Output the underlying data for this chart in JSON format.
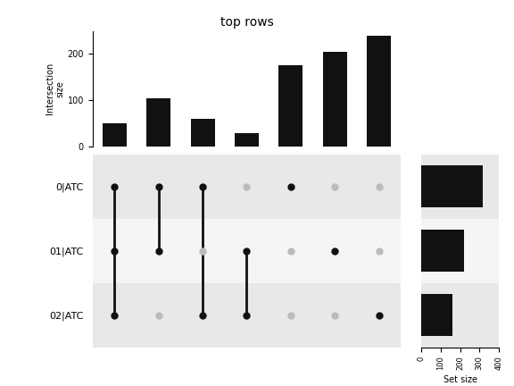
{
  "title": "top rows",
  "intersection_sizes": [
    50,
    105,
    60,
    30,
    175,
    205,
    240
  ],
  "set_labels": [
    "0|ATC",
    "01|ATC",
    "02|ATC"
  ],
  "set_sizes": [
    320,
    220,
    160
  ],
  "n_intersections": 7,
  "n_sets": 3,
  "dot_matrix": [
    [
      1,
      1,
      1,
      0,
      1,
      0,
      0
    ],
    [
      1,
      1,
      0,
      1,
      0,
      1,
      0
    ],
    [
      1,
      0,
      1,
      1,
      0,
      0,
      1
    ]
  ],
  "bar_color": "#111111",
  "dot_active_color": "#111111",
  "dot_inactive_color": "#bbbbbb",
  "bg_stripe_color": "#e8e8e8",
  "bg_white_color": "#f5f5f5",
  "ylabel_intersection": "Intersection\nsize",
  "xlabel_set": "Set size",
  "bar_ylim": [
    0,
    250
  ],
  "bar_yticks": [
    0,
    100,
    200
  ],
  "set_xlim": [
    0,
    400
  ],
  "set_xticks": [
    0,
    100,
    200,
    300,
    400
  ]
}
